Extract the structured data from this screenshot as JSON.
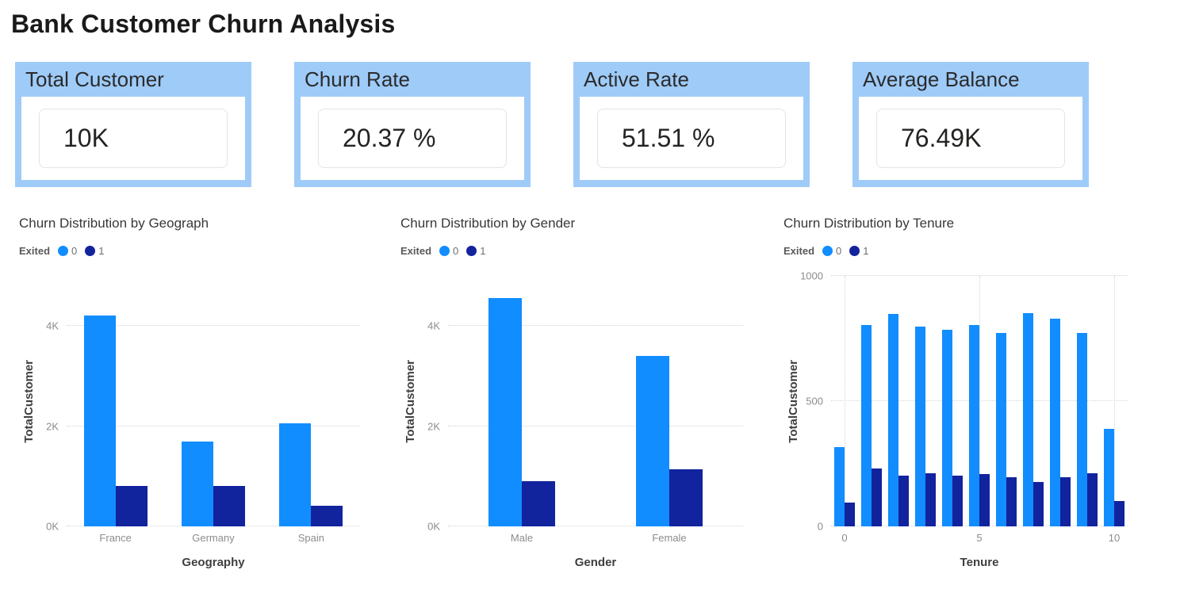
{
  "page": {
    "title": "Bank Customer Churn Analysis"
  },
  "kpi_cards": [
    {
      "label": "Total Customer",
      "value": "10K"
    },
    {
      "label": "Churn Rate",
      "value": "20.37 %"
    },
    {
      "label": "Active Rate",
      "value": "51.51 %"
    },
    {
      "label": "Average Balance",
      "value": "76.49K"
    }
  ],
  "colors": {
    "card_blue": "#9fcbf8",
    "bar_not_exited": "#118DFF",
    "bar_exited": "#12239E"
  },
  "legend": {
    "label": "Exited",
    "items": [
      {
        "label": "0",
        "color": "#118DFF"
      },
      {
        "label": "1",
        "color": "#12239E"
      }
    ]
  },
  "chart_data": [
    {
      "type": "bar",
      "title": "Churn Distribution by Geograph",
      "xlabel": "Geography",
      "ylabel": "TotalCustomer",
      "categories": [
        "France",
        "Germany",
        "Spain"
      ],
      "series": [
        {
          "name": "0",
          "color": "#118DFF",
          "values": [
            4204,
            1695,
            2064
          ]
        },
        {
          "name": "1",
          "color": "#12239E",
          "values": [
            810,
            814,
            413
          ]
        }
      ],
      "ylim": [
        0,
        5000
      ],
      "yticks": [
        {
          "value": 0,
          "label": "0K"
        },
        {
          "value": 2000,
          "label": "2K"
        },
        {
          "value": 4000,
          "label": "4K"
        }
      ],
      "grid": "horizontal-dotted",
      "legend_position": "top-left",
      "layout": {
        "bar_group_frac": 0.65
      }
    },
    {
      "type": "bar",
      "title": "Churn Distribution by Gender",
      "xlabel": "Gender",
      "ylabel": "TotalCustomer",
      "categories": [
        "Male",
        "Female"
      ],
      "series": [
        {
          "name": "0",
          "color": "#118DFF",
          "values": [
            4559,
            3404
          ]
        },
        {
          "name": "1",
          "color": "#12239E",
          "values": [
            898,
            1139
          ]
        }
      ],
      "ylim": [
        0,
        5000
      ],
      "yticks": [
        {
          "value": 0,
          "label": "0K"
        },
        {
          "value": 2000,
          "label": "2K"
        },
        {
          "value": 4000,
          "label": "4K"
        }
      ],
      "grid": "horizontal-dotted",
      "legend_position": "top-left",
      "layout": {
        "bar_group_frac": 0.45
      }
    },
    {
      "type": "bar",
      "title": "Churn Distribution by Tenure",
      "xlabel": "Tenure",
      "ylabel": "TotalCustomer",
      "categories": [
        "0",
        "1",
        "2",
        "3",
        "4",
        "5",
        "6",
        "7",
        "8",
        "9",
        "10"
      ],
      "series": [
        {
          "name": "0",
          "color": "#118DFF",
          "values": [
            318,
            803,
            847,
            796,
            786,
            803,
            771,
            851,
            828,
            771,
            389
          ]
        },
        {
          "name": "1",
          "color": "#12239E",
          "values": [
            95,
            232,
            201,
            213,
            203,
            209,
            196,
            177,
            197,
            213,
            101
          ]
        }
      ],
      "ylim": [
        0,
        1000
      ],
      "yticks": [
        {
          "value": 0,
          "label": "0"
        },
        {
          "value": 500,
          "label": "500"
        },
        {
          "value": 1000,
          "label": "1000"
        }
      ],
      "grid": "horizontal-and-vertical-dotted",
      "legend_position": "top-left",
      "layout": {
        "bar_group_frac": 0.76,
        "vgrid_at": [
          0,
          5,
          10
        ],
        "xtick_show": [
          0,
          5,
          10
        ]
      }
    }
  ]
}
